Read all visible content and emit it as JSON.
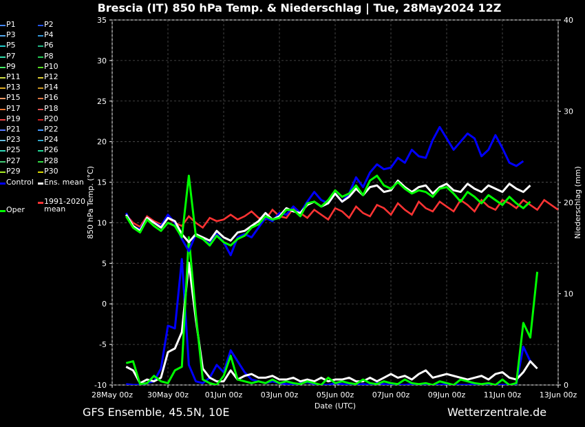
{
  "title": "Brescia  (IT)  850 hPa Temp. & Niederschlag | Tue, 28May2024 12Z",
  "footer": {
    "left": "GFS Ensemble, 45.5N, 10E",
    "right": "Wetterzentrale.de"
  },
  "legend": {
    "items": [
      {
        "label": "P1",
        "color": "#4488ff"
      },
      {
        "label": "P2",
        "color": "#2255ee"
      },
      {
        "label": "P3",
        "color": "#55aaee"
      },
      {
        "label": "P4",
        "color": "#3399dd"
      },
      {
        "label": "P5",
        "color": "#22cccc"
      },
      {
        "label": "P6",
        "color": "#22bb88"
      },
      {
        "label": "P7",
        "color": "#33ddaa"
      },
      {
        "label": "P8",
        "color": "#22cc55"
      },
      {
        "label": "P9",
        "color": "#44ee66"
      },
      {
        "label": "P10",
        "color": "#55dd22"
      },
      {
        "label": "P11",
        "color": "#ccdd44"
      },
      {
        "label": "P12",
        "color": "#ddcc33"
      },
      {
        "label": "P13",
        "color": "#ddaa22"
      },
      {
        "label": "P14",
        "color": "#cc9922"
      },
      {
        "label": "P15",
        "color": "#ee9966"
      },
      {
        "label": "P16",
        "color": "#dd7744"
      },
      {
        "label": "P17",
        "color": "#ee7733"
      },
      {
        "label": "P18",
        "color": "#dd5555"
      },
      {
        "label": "P19",
        "color": "#ee4444"
      },
      {
        "label": "P20",
        "color": "#cc2222"
      },
      {
        "label": "P21",
        "color": "#5577ff"
      },
      {
        "label": "P22",
        "color": "#4499ff"
      },
      {
        "label": "P23",
        "color": "#66bbdd"
      },
      {
        "label": "P24",
        "color": "#33aacc"
      },
      {
        "label": "P25",
        "color": "#33ddbb"
      },
      {
        "label": "P26",
        "color": "#22dd99"
      },
      {
        "label": "P27",
        "color": "#44cc77"
      },
      {
        "label": "P28",
        "color": "#33dd44"
      },
      {
        "label": "P29",
        "color": "#aaee22"
      },
      {
        "label": "P30",
        "color": "#dddd00"
      },
      {
        "label": "Control",
        "color": "#0000ff"
      },
      {
        "label": "Ens. mean",
        "color": "#ffffff"
      },
      {
        "label": "Oper",
        "color": "#00ff00"
      },
      {
        "label": "1991-2020\nmean",
        "color": "#ff3333"
      }
    ]
  },
  "chart_data": {
    "type": "line",
    "xlabel": "Date (UTC)",
    "ylabel": "850 hPa Temp. (°C)",
    "y2label": "Niederschlag (mm)",
    "ylim": [
      -10,
      35
    ],
    "y2lim": [
      0,
      40
    ],
    "yticks": [
      -10,
      -5,
      0,
      5,
      10,
      15,
      20,
      25,
      30,
      35
    ],
    "y2ticks": [
      0,
      10,
      20,
      30,
      40
    ],
    "grid": true,
    "x_tick_labels": [
      "28May 00z",
      "30May 00z",
      "01Jun 00z",
      "03Jun 00z",
      "05Jun 00z",
      "07Jun 00z",
      "09Jun 00z",
      "11Jun 00z",
      "13Jun 00z"
    ],
    "x_hours": [
      12,
      18,
      24,
      30,
      36,
      42,
      48,
      54,
      60,
      66,
      72,
      78,
      84,
      90,
      96,
      102,
      108,
      114,
      120,
      126,
      132,
      138,
      144,
      150,
      156,
      162,
      168,
      174,
      180,
      186,
      192,
      198,
      204,
      210,
      216,
      222,
      228,
      234,
      240,
      246,
      252,
      258,
      264,
      270,
      276,
      282,
      288,
      294,
      300,
      306,
      312,
      318,
      324,
      330,
      336,
      342,
      348,
      354,
      360,
      366,
      372,
      378,
      384
    ],
    "series": [
      {
        "name": "1991-2020\nmean",
        "axis": "temp",
        "color": "#ff3333",
        "values": [
          11.0,
          10.0,
          9.5,
          10.8,
          10.2,
          9.8,
          10.6,
          10.0,
          9.6,
          10.8,
          10.0,
          9.4,
          10.6,
          10.2,
          10.4,
          11.0,
          10.4,
          10.8,
          11.4,
          10.6,
          10.4,
          11.6,
          10.8,
          10.6,
          11.8,
          11.2,
          10.6,
          11.6,
          11.0,
          10.4,
          11.8,
          11.4,
          10.6,
          12.0,
          11.2,
          10.8,
          12.2,
          11.8,
          11.0,
          12.4,
          11.6,
          11.0,
          12.6,
          11.8,
          11.4,
          12.6,
          12.0,
          11.4,
          12.8,
          12.2,
          11.4,
          12.8,
          12.0,
          11.6,
          12.8,
          12.4,
          11.8,
          12.8,
          12.2,
          11.6,
          12.8,
          12.2,
          11.6
        ]
      },
      {
        "name": "Control",
        "axis": "temp",
        "color": "#0000ff",
        "values": [
          11.2,
          9.5,
          9.2,
          10.6,
          10.0,
          9.6,
          11.0,
          10.0,
          8.0,
          6.5,
          8.6,
          8.0,
          7.4,
          8.6,
          7.6,
          6.0,
          8.2,
          8.6,
          8.2,
          9.4,
          10.6,
          10.2,
          11.2,
          11.0,
          12.0,
          11.2,
          12.6,
          13.8,
          12.8,
          12.4,
          13.6,
          12.6,
          13.6,
          15.6,
          14.4,
          16.2,
          17.2,
          16.6,
          16.8,
          18.0,
          17.4,
          19.0,
          18.2,
          18.0,
          20.2,
          21.8,
          20.4,
          19.0,
          20.0,
          21.0,
          20.4,
          18.2,
          19.0,
          20.8,
          19.2,
          17.4,
          17.0,
          17.6
        ]
      },
      {
        "name": "Ens. mean",
        "axis": "temp",
        "color": "#ffffff",
        "values": [
          11.0,
          9.6,
          9.0,
          10.6,
          10.0,
          9.4,
          10.6,
          10.2,
          8.6,
          7.6,
          8.6,
          8.2,
          7.8,
          9.0,
          8.2,
          7.8,
          8.8,
          9.0,
          9.6,
          10.2,
          11.2,
          10.4,
          10.8,
          11.8,
          11.4,
          11.2,
          12.2,
          12.6,
          12.0,
          12.4,
          13.6,
          12.6,
          13.2,
          14.2,
          13.4,
          14.4,
          14.6,
          13.8,
          14.0,
          15.2,
          14.4,
          13.8,
          14.4,
          14.6,
          13.6,
          14.4,
          14.8,
          14.0,
          13.8,
          14.8,
          14.2,
          13.8,
          14.6,
          14.2,
          13.8,
          14.8,
          14.2,
          13.8,
          14.6
        ]
      },
      {
        "name": "Oper",
        "axis": "temp",
        "color": "#00ff00",
        "values": [
          10.8,
          9.4,
          8.8,
          10.4,
          9.6,
          9.0,
          10.0,
          9.6,
          8.2,
          15.8,
          8.4,
          8.0,
          7.2,
          8.4,
          7.6,
          7.2,
          8.0,
          8.4,
          9.4,
          9.8,
          10.8,
          10.4,
          10.6,
          11.6,
          11.6,
          10.8,
          12.4,
          12.6,
          12.0,
          12.8,
          14.0,
          13.2,
          13.6,
          14.6,
          13.4,
          15.2,
          15.8,
          14.6,
          14.2,
          15.0,
          14.2,
          13.6,
          14.0,
          13.8,
          13.2,
          14.2,
          14.4,
          13.6,
          12.6,
          13.8,
          13.2,
          12.4,
          13.4,
          12.8,
          12.2,
          13.2,
          12.4,
          11.8,
          12.6
        ]
      },
      {
        "name": "Control",
        "axis": "precip",
        "color": "#0000ff",
        "values": [
          0.1,
          0.0,
          0.0,
          0.2,
          0.4,
          1.8,
          6.5,
          6.2,
          13.8,
          2.2,
          0.4,
          0.2,
          0.8,
          2.2,
          1.4,
          3.8,
          2.6,
          1.4,
          0.6,
          0.4,
          0.2,
          0.4,
          0.2,
          0.1,
          0.0,
          0.2,
          0.3,
          0.1,
          0.0,
          0.0,
          0.2,
          0.1,
          0.0,
          0.0,
          0.1,
          0.0,
          0.2,
          0.1,
          0.0,
          0.0,
          0.0,
          0.1,
          0.0,
          0.0,
          0.0,
          0.0,
          0.1,
          0.0,
          0.0,
          0.0,
          0.1,
          0.0,
          0.0,
          0.0,
          0.0,
          0.0,
          0.1,
          4.2,
          2.6
        ]
      },
      {
        "name": "Ens. mean",
        "axis": "precip",
        "color": "#ffffff",
        "values": [
          2.0,
          1.6,
          0.2,
          0.6,
          0.4,
          0.8,
          3.6,
          4.0,
          5.8,
          13.4,
          7.2,
          1.8,
          0.8,
          0.4,
          0.4,
          1.6,
          0.6,
          1.0,
          1.2,
          0.8,
          0.8,
          1.0,
          0.6,
          0.6,
          0.8,
          0.4,
          0.6,
          0.4,
          0.8,
          0.4,
          0.6,
          0.6,
          0.8,
          0.4,
          0.4,
          0.8,
          0.4,
          0.8,
          1.2,
          0.8,
          1.0,
          0.6,
          1.2,
          1.6,
          0.8,
          1.0,
          1.2,
          1.0,
          0.8,
          0.6,
          0.8,
          1.0,
          0.6,
          1.2,
          1.4,
          0.8,
          0.6,
          1.4,
          2.6,
          1.8
        ]
      },
      {
        "name": "Oper",
        "axis": "precip",
        "color": "#00ff00",
        "values": [
          2.4,
          2.6,
          0.1,
          0.2,
          1.0,
          0.4,
          0.2,
          1.6,
          2.0,
          16.2,
          7.8,
          0.6,
          0.2,
          0.0,
          1.0,
          3.2,
          0.6,
          0.4,
          0.2,
          0.4,
          0.2,
          0.6,
          0.2,
          0.4,
          0.2,
          0.1,
          0.4,
          0.2,
          0.0,
          0.8,
          0.2,
          0.4,
          0.2,
          0.1,
          0.6,
          0.2,
          0.1,
          0.4,
          0.2,
          0.1,
          0.6,
          0.2,
          0.1,
          0.2,
          0.0,
          0.4,
          0.2,
          0.0,
          0.6,
          0.4,
          0.2,
          0.1,
          0.2,
          0.0,
          0.6,
          0.0,
          0.2,
          6.8,
          5.2,
          12.4
        ]
      }
    ]
  }
}
